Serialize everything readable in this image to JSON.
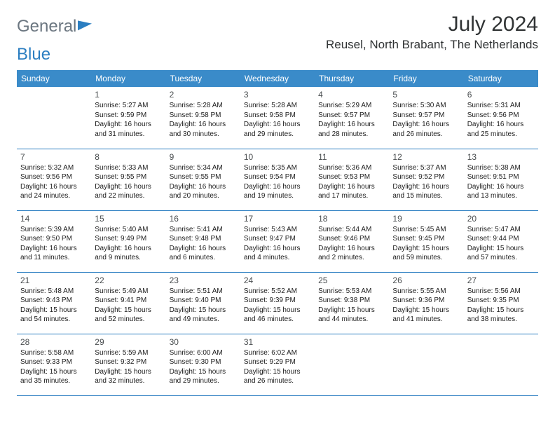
{
  "logo": {
    "part1": "General",
    "part2": "Blue"
  },
  "title": "July 2024",
  "location": "Reusel, North Brabant, The Netherlands",
  "colors": {
    "header_bg": "#3a8bc9",
    "header_fg": "#ffffff",
    "rule": "#2b7ec1",
    "text": "#202020",
    "title_text": "#303334"
  },
  "day_headers": [
    "Sunday",
    "Monday",
    "Tuesday",
    "Wednesday",
    "Thursday",
    "Friday",
    "Saturday"
  ],
  "weeks": [
    [
      {
        "n": "",
        "sunrise": "",
        "sunset": "",
        "daylight1": "",
        "daylight2": ""
      },
      {
        "n": "1",
        "sunrise": "Sunrise: 5:27 AM",
        "sunset": "Sunset: 9:59 PM",
        "daylight1": "Daylight: 16 hours",
        "daylight2": "and 31 minutes."
      },
      {
        "n": "2",
        "sunrise": "Sunrise: 5:28 AM",
        "sunset": "Sunset: 9:58 PM",
        "daylight1": "Daylight: 16 hours",
        "daylight2": "and 30 minutes."
      },
      {
        "n": "3",
        "sunrise": "Sunrise: 5:28 AM",
        "sunset": "Sunset: 9:58 PM",
        "daylight1": "Daylight: 16 hours",
        "daylight2": "and 29 minutes."
      },
      {
        "n": "4",
        "sunrise": "Sunrise: 5:29 AM",
        "sunset": "Sunset: 9:57 PM",
        "daylight1": "Daylight: 16 hours",
        "daylight2": "and 28 minutes."
      },
      {
        "n": "5",
        "sunrise": "Sunrise: 5:30 AM",
        "sunset": "Sunset: 9:57 PM",
        "daylight1": "Daylight: 16 hours",
        "daylight2": "and 26 minutes."
      },
      {
        "n": "6",
        "sunrise": "Sunrise: 5:31 AM",
        "sunset": "Sunset: 9:56 PM",
        "daylight1": "Daylight: 16 hours",
        "daylight2": "and 25 minutes."
      }
    ],
    [
      {
        "n": "7",
        "sunrise": "Sunrise: 5:32 AM",
        "sunset": "Sunset: 9:56 PM",
        "daylight1": "Daylight: 16 hours",
        "daylight2": "and 24 minutes."
      },
      {
        "n": "8",
        "sunrise": "Sunrise: 5:33 AM",
        "sunset": "Sunset: 9:55 PM",
        "daylight1": "Daylight: 16 hours",
        "daylight2": "and 22 minutes."
      },
      {
        "n": "9",
        "sunrise": "Sunrise: 5:34 AM",
        "sunset": "Sunset: 9:55 PM",
        "daylight1": "Daylight: 16 hours",
        "daylight2": "and 20 minutes."
      },
      {
        "n": "10",
        "sunrise": "Sunrise: 5:35 AM",
        "sunset": "Sunset: 9:54 PM",
        "daylight1": "Daylight: 16 hours",
        "daylight2": "and 19 minutes."
      },
      {
        "n": "11",
        "sunrise": "Sunrise: 5:36 AM",
        "sunset": "Sunset: 9:53 PM",
        "daylight1": "Daylight: 16 hours",
        "daylight2": "and 17 minutes."
      },
      {
        "n": "12",
        "sunrise": "Sunrise: 5:37 AM",
        "sunset": "Sunset: 9:52 PM",
        "daylight1": "Daylight: 16 hours",
        "daylight2": "and 15 minutes."
      },
      {
        "n": "13",
        "sunrise": "Sunrise: 5:38 AM",
        "sunset": "Sunset: 9:51 PM",
        "daylight1": "Daylight: 16 hours",
        "daylight2": "and 13 minutes."
      }
    ],
    [
      {
        "n": "14",
        "sunrise": "Sunrise: 5:39 AM",
        "sunset": "Sunset: 9:50 PM",
        "daylight1": "Daylight: 16 hours",
        "daylight2": "and 11 minutes."
      },
      {
        "n": "15",
        "sunrise": "Sunrise: 5:40 AM",
        "sunset": "Sunset: 9:49 PM",
        "daylight1": "Daylight: 16 hours",
        "daylight2": "and 9 minutes."
      },
      {
        "n": "16",
        "sunrise": "Sunrise: 5:41 AM",
        "sunset": "Sunset: 9:48 PM",
        "daylight1": "Daylight: 16 hours",
        "daylight2": "and 6 minutes."
      },
      {
        "n": "17",
        "sunrise": "Sunrise: 5:43 AM",
        "sunset": "Sunset: 9:47 PM",
        "daylight1": "Daylight: 16 hours",
        "daylight2": "and 4 minutes."
      },
      {
        "n": "18",
        "sunrise": "Sunrise: 5:44 AM",
        "sunset": "Sunset: 9:46 PM",
        "daylight1": "Daylight: 16 hours",
        "daylight2": "and 2 minutes."
      },
      {
        "n": "19",
        "sunrise": "Sunrise: 5:45 AM",
        "sunset": "Sunset: 9:45 PM",
        "daylight1": "Daylight: 15 hours",
        "daylight2": "and 59 minutes."
      },
      {
        "n": "20",
        "sunrise": "Sunrise: 5:47 AM",
        "sunset": "Sunset: 9:44 PM",
        "daylight1": "Daylight: 15 hours",
        "daylight2": "and 57 minutes."
      }
    ],
    [
      {
        "n": "21",
        "sunrise": "Sunrise: 5:48 AM",
        "sunset": "Sunset: 9:43 PM",
        "daylight1": "Daylight: 15 hours",
        "daylight2": "and 54 minutes."
      },
      {
        "n": "22",
        "sunrise": "Sunrise: 5:49 AM",
        "sunset": "Sunset: 9:41 PM",
        "daylight1": "Daylight: 15 hours",
        "daylight2": "and 52 minutes."
      },
      {
        "n": "23",
        "sunrise": "Sunrise: 5:51 AM",
        "sunset": "Sunset: 9:40 PM",
        "daylight1": "Daylight: 15 hours",
        "daylight2": "and 49 minutes."
      },
      {
        "n": "24",
        "sunrise": "Sunrise: 5:52 AM",
        "sunset": "Sunset: 9:39 PM",
        "daylight1": "Daylight: 15 hours",
        "daylight2": "and 46 minutes."
      },
      {
        "n": "25",
        "sunrise": "Sunrise: 5:53 AM",
        "sunset": "Sunset: 9:38 PM",
        "daylight1": "Daylight: 15 hours",
        "daylight2": "and 44 minutes."
      },
      {
        "n": "26",
        "sunrise": "Sunrise: 5:55 AM",
        "sunset": "Sunset: 9:36 PM",
        "daylight1": "Daylight: 15 hours",
        "daylight2": "and 41 minutes."
      },
      {
        "n": "27",
        "sunrise": "Sunrise: 5:56 AM",
        "sunset": "Sunset: 9:35 PM",
        "daylight1": "Daylight: 15 hours",
        "daylight2": "and 38 minutes."
      }
    ],
    [
      {
        "n": "28",
        "sunrise": "Sunrise: 5:58 AM",
        "sunset": "Sunset: 9:33 PM",
        "daylight1": "Daylight: 15 hours",
        "daylight2": "and 35 minutes."
      },
      {
        "n": "29",
        "sunrise": "Sunrise: 5:59 AM",
        "sunset": "Sunset: 9:32 PM",
        "daylight1": "Daylight: 15 hours",
        "daylight2": "and 32 minutes."
      },
      {
        "n": "30",
        "sunrise": "Sunrise: 6:00 AM",
        "sunset": "Sunset: 9:30 PM",
        "daylight1": "Daylight: 15 hours",
        "daylight2": "and 29 minutes."
      },
      {
        "n": "31",
        "sunrise": "Sunrise: 6:02 AM",
        "sunset": "Sunset: 9:29 PM",
        "daylight1": "Daylight: 15 hours",
        "daylight2": "and 26 minutes."
      },
      {
        "n": "",
        "sunrise": "",
        "sunset": "",
        "daylight1": "",
        "daylight2": ""
      },
      {
        "n": "",
        "sunrise": "",
        "sunset": "",
        "daylight1": "",
        "daylight2": ""
      },
      {
        "n": "",
        "sunrise": "",
        "sunset": "",
        "daylight1": "",
        "daylight2": ""
      }
    ]
  ]
}
